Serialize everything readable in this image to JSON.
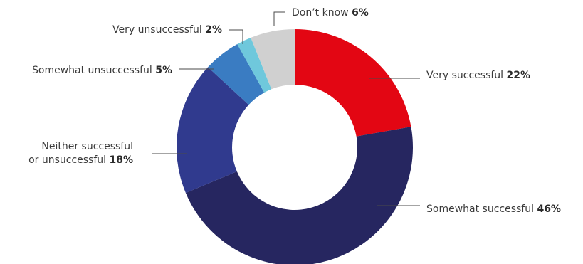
{
  "chart_data": {
    "type": "pie",
    "donut": true,
    "slices": [
      {
        "label": "Very successful",
        "value": 22,
        "value_label": "22%",
        "color": "#e30613"
      },
      {
        "label": "Somewhat successful",
        "value": 46,
        "value_label": "46%",
        "color": "#262660"
      },
      {
        "label": "Neither successful or unsuccessful",
        "label_lines": [
          "Neither successful",
          "or unsuccessful"
        ],
        "value": 18,
        "value_label": "18%",
        "color": "#303a8e"
      },
      {
        "label": "Somewhat unsuccessful",
        "value": 5,
        "value_label": "5%",
        "color": "#3a7cc2"
      },
      {
        "label": "Very unsuccessful",
        "value": 2,
        "value_label": "2%",
        "color": "#6fc8dc"
      },
      {
        "label": "Don’t know",
        "value": 6,
        "value_label": "6%",
        "color": "#d0d0d0"
      }
    ],
    "start": "12 o'clock",
    "direction": "clockwise",
    "legend": "none"
  }
}
